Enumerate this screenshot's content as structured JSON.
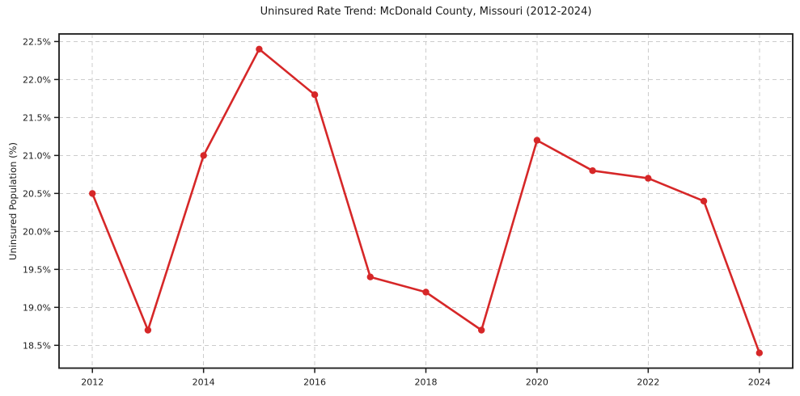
{
  "chart_data": {
    "type": "line",
    "title": "Uninsured Rate Trend: McDonald County, Missouri (2012-2024)",
    "xlabel": "",
    "ylabel": "Uninsured Population (%)",
    "x": [
      2012,
      2013,
      2014,
      2015,
      2016,
      2017,
      2018,
      2019,
      2020,
      2021,
      2022,
      2023,
      2024
    ],
    "values": [
      20.5,
      18.7,
      21.0,
      22.4,
      21.8,
      19.4,
      19.2,
      18.7,
      21.2,
      20.8,
      20.7,
      20.4,
      18.4
    ],
    "xticks": [
      2012,
      2014,
      2016,
      2018,
      2020,
      2022,
      2024
    ],
    "xtick_labels": [
      "2012",
      "2014",
      "2016",
      "2018",
      "2020",
      "2022",
      "2024"
    ],
    "yticks": [
      18.5,
      19.0,
      19.5,
      20.0,
      20.5,
      21.0,
      21.5,
      22.0,
      22.5
    ],
    "ytick_labels": [
      "18.5%",
      "19.0%",
      "19.5%",
      "20.0%",
      "20.5%",
      "21.0%",
      "21.5%",
      "22.0%",
      "22.5%"
    ],
    "xlim": [
      2011.4,
      2024.6
    ],
    "ylim": [
      18.2,
      22.6
    ],
    "grid": true,
    "grid_style": "dashed",
    "legend": "none",
    "marker": "circle",
    "colors": {
      "line": "#d62728",
      "marker": "#d62728",
      "grid": "#cccccc",
      "axis": "#1a1a1a",
      "background": "#ffffff"
    }
  }
}
